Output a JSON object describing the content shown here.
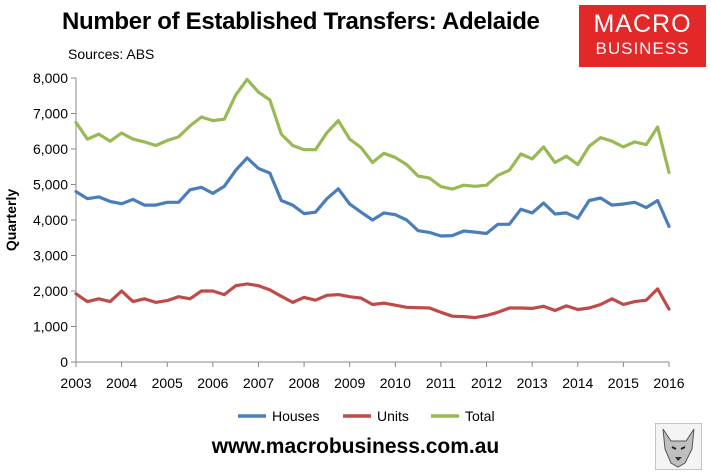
{
  "header": {
    "title": "Number of Established Transfers: Adelaide",
    "sources": "Sources: ABS"
  },
  "logo": {
    "line1": "MACRO",
    "line2": "BUSINESS",
    "color": "#e22828"
  },
  "footer": {
    "website": "www.macrobusiness.com.au"
  },
  "chart_data": {
    "type": "line",
    "title": "Number of Established Transfers: Adelaide",
    "ylabel": "Quarterly",
    "xlabel": "",
    "xlim": [
      2003,
      2016
    ],
    "ylim": [
      0,
      8000
    ],
    "x_ticks": [
      "2003",
      "2004",
      "2005",
      "2006",
      "2007",
      "2008",
      "2009",
      "2010",
      "2011",
      "2012",
      "2013",
      "2014",
      "2015",
      "2016"
    ],
    "y_ticks": [
      "0",
      "1,000",
      "2,000",
      "3,000",
      "4,000",
      "5,000",
      "6,000",
      "7,000",
      "8,000"
    ],
    "grid": false,
    "legend_position": "bottom",
    "x": [
      2003.0,
      2003.25,
      2003.5,
      2003.75,
      2004.0,
      2004.25,
      2004.5,
      2004.75,
      2005.0,
      2005.25,
      2005.5,
      2005.75,
      2006.0,
      2006.25,
      2006.5,
      2006.75,
      2007.0,
      2007.25,
      2007.5,
      2007.75,
      2008.0,
      2008.25,
      2008.5,
      2008.75,
      2009.0,
      2009.25,
      2009.5,
      2009.75,
      2010.0,
      2010.25,
      2010.5,
      2010.75,
      2011.0,
      2011.25,
      2011.5,
      2011.75,
      2012.0,
      2012.25,
      2012.5,
      2012.75,
      2013.0,
      2013.25,
      2013.5,
      2013.75,
      2014.0,
      2014.25,
      2014.5,
      2014.75,
      2015.0,
      2015.25,
      2015.5,
      2015.75,
      2016.0
    ],
    "series": [
      {
        "name": "Houses",
        "color": "#4a7ebb",
        "values": [
          4800,
          4600,
          4650,
          4520,
          4460,
          4580,
          4420,
          4420,
          4500,
          4500,
          4850,
          4920,
          4750,
          4950,
          5400,
          5750,
          5450,
          5320,
          4550,
          4420,
          4180,
          4220,
          4600,
          4880,
          4450,
          4220,
          4000,
          4200,
          4150,
          4000,
          3700,
          3650,
          3550,
          3560,
          3690,
          3660,
          3620,
          3880,
          3880,
          4300,
          4200,
          4480,
          4170,
          4200,
          4050,
          4550,
          4620,
          4420,
          4450,
          4500,
          4350,
          4550,
          3820
        ]
      },
      {
        "name": "Units",
        "color": "#be4b48",
        "values": [
          1920,
          1700,
          1780,
          1700,
          2000,
          1700,
          1780,
          1680,
          1730,
          1840,
          1780,
          2000,
          2000,
          1900,
          2150,
          2200,
          2150,
          2030,
          1850,
          1680,
          1820,
          1740,
          1880,
          1900,
          1840,
          1800,
          1620,
          1660,
          1600,
          1540,
          1530,
          1520,
          1400,
          1290,
          1280,
          1250,
          1310,
          1400,
          1520,
          1520,
          1510,
          1570,
          1450,
          1580,
          1480,
          1520,
          1620,
          1780,
          1620,
          1700,
          1740,
          2060,
          1490
        ]
      },
      {
        "name": "Total",
        "color": "#98b954",
        "values": [
          6750,
          6280,
          6420,
          6220,
          6450,
          6280,
          6200,
          6100,
          6240,
          6340,
          6650,
          6900,
          6800,
          6840,
          7520,
          7960,
          7600,
          7380,
          6420,
          6100,
          5980,
          5980,
          6460,
          6800,
          6280,
          6040,
          5620,
          5880,
          5760,
          5560,
          5240,
          5180,
          4940,
          4870,
          4980,
          4950,
          4980,
          5260,
          5400,
          5860,
          5720,
          6060,
          5620,
          5800,
          5560,
          6080,
          6320,
          6220,
          6060,
          6200,
          6120,
          6620,
          5340
        ]
      }
    ]
  }
}
